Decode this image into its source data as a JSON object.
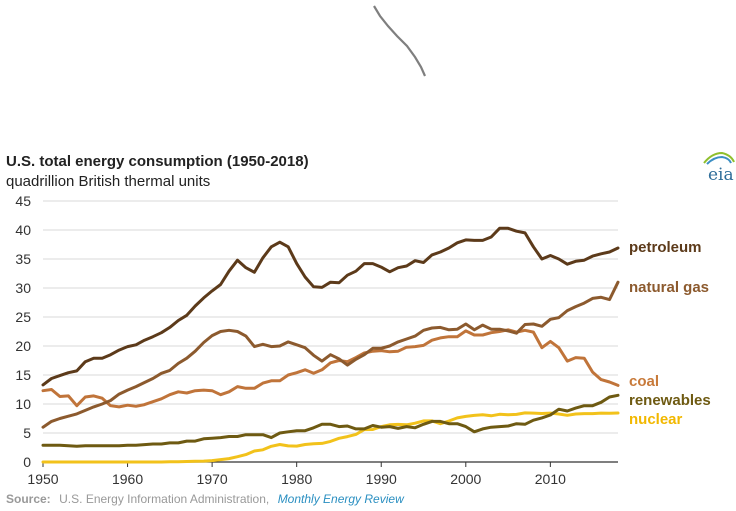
{
  "chart_data": {
    "type": "line",
    "title": "U.S. total energy consumption (1950-2018)",
    "subtitle": "quadrillion British thermal units",
    "x": [
      1950,
      1951,
      1952,
      1953,
      1954,
      1955,
      1956,
      1957,
      1958,
      1959,
      1960,
      1961,
      1962,
      1963,
      1964,
      1965,
      1966,
      1967,
      1968,
      1969,
      1970,
      1971,
      1972,
      1973,
      1974,
      1975,
      1976,
      1977,
      1978,
      1979,
      1980,
      1981,
      1982,
      1983,
      1984,
      1985,
      1986,
      1987,
      1988,
      1989,
      1990,
      1991,
      1992,
      1993,
      1994,
      1995,
      1996,
      1997,
      1998,
      1999,
      2000,
      2001,
      2002,
      2003,
      2004,
      2005,
      2006,
      2007,
      2008,
      2009,
      2010,
      2011,
      2012,
      2013,
      2014,
      2015,
      2016,
      2017,
      2018
    ],
    "xlim": [
      1950,
      2018
    ],
    "ylim": [
      0,
      45
    ],
    "x_ticks": [
      1950,
      1960,
      1970,
      1980,
      1990,
      2000,
      2010
    ],
    "y_ticks": [
      0,
      5,
      10,
      15,
      20,
      25,
      30,
      35,
      40,
      45
    ],
    "x_tick_labels": [
      "1950",
      "1960",
      "1970",
      "1980",
      "1990",
      "2000",
      "2010"
    ],
    "y_tick_labels": [
      "0",
      "5",
      "10",
      "15",
      "20",
      "25",
      "30",
      "35",
      "40",
      "45"
    ],
    "grid": "horizontal",
    "xlabel": "",
    "ylabel": "",
    "series": [
      {
        "name": "petroleum",
        "color": "#5c3a1a",
        "label_color": "#5c3a1a",
        "values": [
          13.3,
          14.4,
          14.9,
          15.4,
          15.7,
          17.3,
          17.9,
          17.9,
          18.5,
          19.3,
          19.9,
          20.2,
          21.0,
          21.6,
          22.3,
          23.2,
          24.4,
          25.3,
          26.9,
          28.3,
          29.5,
          30.6,
          32.9,
          34.8,
          33.5,
          32.7,
          35.2,
          37.1,
          37.9,
          37.1,
          34.2,
          31.9,
          30.2,
          30.1,
          31.0,
          30.9,
          32.2,
          32.9,
          34.2,
          34.2,
          33.6,
          32.8,
          33.5,
          33.8,
          34.7,
          34.4,
          35.7,
          36.2,
          36.9,
          37.8,
          38.3,
          38.2,
          38.2,
          38.8,
          40.3,
          40.3,
          39.8,
          39.5,
          37.1,
          35.0,
          35.6,
          35.0,
          34.1,
          34.6,
          34.8,
          35.5,
          35.9,
          36.2,
          36.9
        ]
      },
      {
        "name": "natural gas",
        "color": "#8c5a2e",
        "label_color": "#8c5a2e",
        "values": [
          6.0,
          7.0,
          7.5,
          7.9,
          8.3,
          8.9,
          9.5,
          10.0,
          10.6,
          11.7,
          12.4,
          13.0,
          13.7,
          14.4,
          15.3,
          15.8,
          17.0,
          17.9,
          19.1,
          20.6,
          21.8,
          22.5,
          22.7,
          22.5,
          21.7,
          19.9,
          20.3,
          19.9,
          20.0,
          20.7,
          20.2,
          19.7,
          18.4,
          17.4,
          18.5,
          17.8,
          16.7,
          17.7,
          18.5,
          19.6,
          19.6,
          20.0,
          20.7,
          21.2,
          21.7,
          22.7,
          23.1,
          23.2,
          22.8,
          22.9,
          23.8,
          22.8,
          23.6,
          22.9,
          22.9,
          22.6,
          22.2,
          23.7,
          23.8,
          23.4,
          24.6,
          24.9,
          26.1,
          26.8,
          27.4,
          28.2,
          28.4,
          28.0,
          31.0
        ]
      },
      {
        "name": "coal",
        "color": "#c0743a",
        "label_color": "#c87a3a",
        "values": [
          12.3,
          12.5,
          11.3,
          11.4,
          9.7,
          11.2,
          11.4,
          11.0,
          9.7,
          9.5,
          9.8,
          9.6,
          9.9,
          10.4,
          10.9,
          11.6,
          12.1,
          11.9,
          12.3,
          12.4,
          12.3,
          11.6,
          12.1,
          13.0,
          12.7,
          12.7,
          13.6,
          14.0,
          14.0,
          15.0,
          15.4,
          15.9,
          15.3,
          15.9,
          17.1,
          17.5,
          17.3,
          18.0,
          18.8,
          19.1,
          19.2,
          19.0,
          19.1,
          19.8,
          19.9,
          20.1,
          21.0,
          21.4,
          21.6,
          21.6,
          22.6,
          21.9,
          21.9,
          22.3,
          22.5,
          22.8,
          22.4,
          22.7,
          22.4,
          19.7,
          20.8,
          19.7,
          17.4,
          18.0,
          17.9,
          15.5,
          14.2,
          13.8,
          13.2
        ]
      },
      {
        "name": "renewables",
        "color": "#6e5a12",
        "label_color": "#6e5a12",
        "values": [
          2.9,
          2.9,
          2.9,
          2.8,
          2.7,
          2.8,
          2.8,
          2.8,
          2.8,
          2.8,
          2.9,
          2.9,
          3.0,
          3.1,
          3.1,
          3.3,
          3.3,
          3.6,
          3.6,
          4.0,
          4.1,
          4.2,
          4.4,
          4.4,
          4.7,
          4.7,
          4.7,
          4.2,
          5.0,
          5.2,
          5.4,
          5.4,
          5.9,
          6.5,
          6.5,
          6.1,
          6.2,
          5.7,
          5.7,
          6.3,
          6.0,
          6.1,
          5.8,
          6.1,
          5.9,
          6.5,
          7.0,
          7.0,
          6.6,
          6.6,
          6.1,
          5.2,
          5.7,
          6.0,
          6.1,
          6.2,
          6.6,
          6.5,
          7.2,
          7.6,
          8.1,
          9.1,
          8.8,
          9.3,
          9.7,
          9.7,
          10.3,
          11.2,
          11.5
        ]
      },
      {
        "name": "nuclear",
        "color": "#f2c21b",
        "label_color": "#f2b800",
        "values": [
          0,
          0,
          0,
          0,
          0,
          0,
          0,
          0,
          0,
          0,
          0,
          0,
          0,
          0,
          0,
          0.04,
          0.06,
          0.09,
          0.14,
          0.15,
          0.24,
          0.41,
          0.58,
          0.91,
          1.27,
          1.9,
          2.11,
          2.7,
          3.02,
          2.78,
          2.74,
          3.01,
          3.13,
          3.2,
          3.55,
          4.08,
          4.38,
          4.75,
          5.59,
          5.6,
          6.1,
          6.42,
          6.48,
          6.41,
          6.69,
          7.08,
          7.09,
          6.6,
          7.07,
          7.61,
          7.86,
          8.03,
          8.14,
          7.96,
          8.22,
          8.16,
          8.21,
          8.46,
          8.43,
          8.36,
          8.43,
          8.27,
          8.06,
          8.27,
          8.34,
          8.34,
          8.43,
          8.42,
          8.44
        ]
      }
    ]
  },
  "source": {
    "prefix": "Source:",
    "text": "U.S. Energy Information Administration,",
    "link": "Monthly Energy Review"
  },
  "logo": {
    "text": "eia"
  },
  "colors": {
    "grid": "#d9d9d9",
    "axis": "#333333",
    "stroke": "#777777"
  }
}
